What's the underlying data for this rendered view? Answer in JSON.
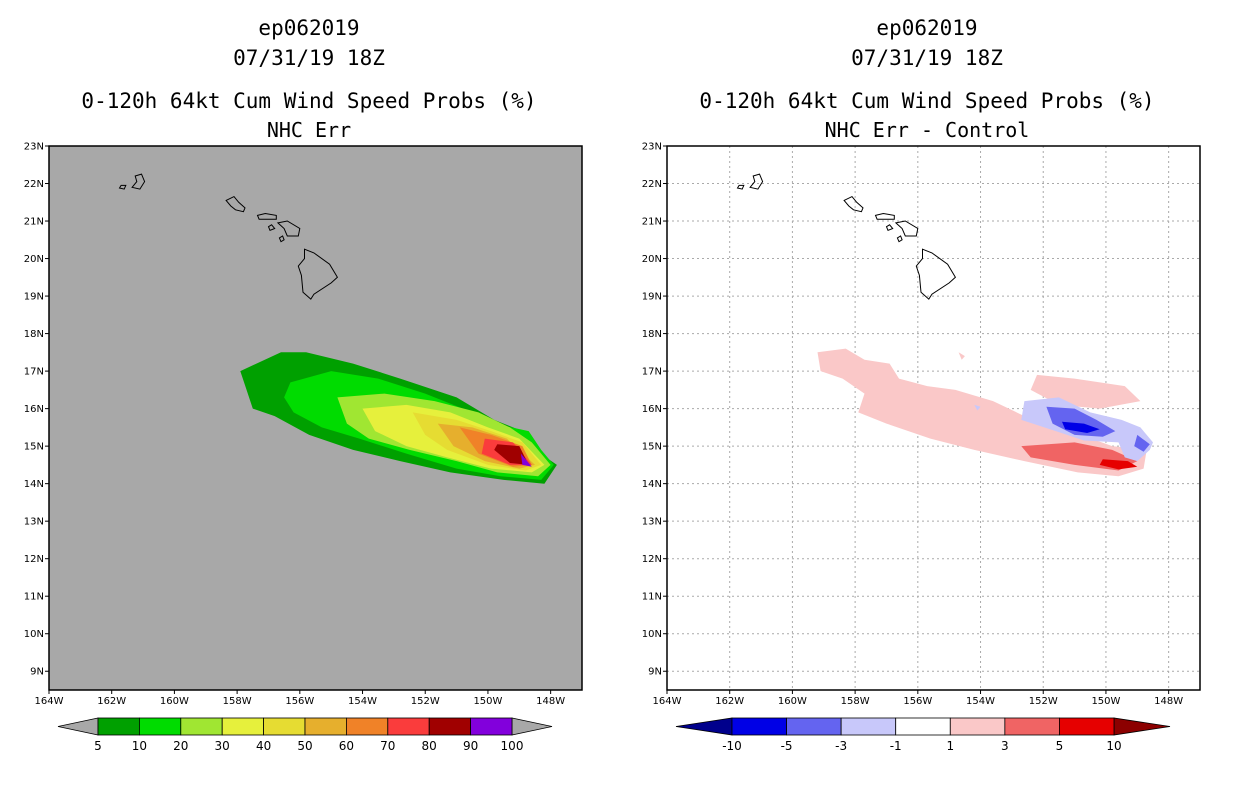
{
  "chart_data": [
    {
      "type": "heatmap",
      "storm_id": "ep062019",
      "datetime": "07/31/19 18Z",
      "title": "0-120h 64kt Cum Wind Speed Probs (%)",
      "subtitle": "NHC Err",
      "xlabel": "",
      "ylabel": "",
      "xlim": [
        -164,
        -147
      ],
      "ylim": [
        8.5,
        23
      ],
      "x_ticks": [
        "164W",
        "162W",
        "160W",
        "158W",
        "156W",
        "154W",
        "152W",
        "150W",
        "148W"
      ],
      "y_ticks": [
        "23N",
        "22N",
        "21N",
        "20N",
        "19N",
        "18N",
        "17N",
        "16N",
        "15N",
        "14N",
        "13N",
        "12N",
        "11N",
        "10N",
        "9N"
      ],
      "grid": false,
      "background": "#a8a8a8",
      "colorbar": {
        "labels": [
          "5",
          "10",
          "20",
          "30",
          "40",
          "50",
          "60",
          "70",
          "80",
          "90",
          "100"
        ],
        "colors": [
          "#00a000",
          "#00dc00",
          "#a0e632",
          "#e6f03c",
          "#e6dc32",
          "#e6af2d",
          "#f08228",
          "#fa3c3c",
          "#a00000",
          "#8200dc"
        ],
        "end_colors": [
          "#a8a8a8",
          "#a8a8a8"
        ]
      },
      "contours": [
        {
          "level": 5,
          "color": "#00a000",
          "points": [
            [
              -157.9,
              17.0
            ],
            [
              -156.6,
              17.5
            ],
            [
              -155.8,
              17.5
            ],
            [
              -154.3,
              17.2
            ],
            [
              -152.8,
              16.8
            ],
            [
              -151.0,
              16.3
            ],
            [
              -149.8,
              15.7
            ],
            [
              -148.9,
              15.4
            ],
            [
              -148.5,
              14.9
            ],
            [
              -147.8,
              14.5
            ],
            [
              -148.2,
              14.0
            ],
            [
              -149.5,
              14.1
            ],
            [
              -151.2,
              14.3
            ],
            [
              -152.8,
              14.6
            ],
            [
              -154.3,
              14.9
            ],
            [
              -155.7,
              15.3
            ],
            [
              -156.8,
              15.8
            ],
            [
              -157.5,
              16.0
            ]
          ]
        },
        {
          "level": 10,
          "color": "#00dc00",
          "points": [
            [
              -156.3,
              16.7
            ],
            [
              -155.0,
              17.0
            ],
            [
              -153.5,
              16.8
            ],
            [
              -152.0,
              16.4
            ],
            [
              -150.8,
              16.0
            ],
            [
              -149.8,
              15.6
            ],
            [
              -148.7,
              15.4
            ],
            [
              -148.3,
              14.9
            ],
            [
              -147.9,
              14.5
            ],
            [
              -148.3,
              14.1
            ],
            [
              -149.6,
              14.2
            ],
            [
              -151.0,
              14.4
            ],
            [
              -152.6,
              14.8
            ],
            [
              -154.1,
              15.2
            ],
            [
              -155.3,
              15.5
            ],
            [
              -156.2,
              15.9
            ],
            [
              -156.5,
              16.3
            ]
          ]
        },
        {
          "level": 20,
          "color": "#a0e632",
          "points": [
            [
              -154.8,
              16.3
            ],
            [
              -153.3,
              16.4
            ],
            [
              -151.7,
              16.2
            ],
            [
              -150.3,
              15.9
            ],
            [
              -149.3,
              15.5
            ],
            [
              -148.6,
              15.1
            ],
            [
              -148.0,
              14.5
            ],
            [
              -148.4,
              14.2
            ],
            [
              -149.7,
              14.3
            ],
            [
              -151.0,
              14.6
            ],
            [
              -152.5,
              14.9
            ],
            [
              -153.8,
              15.2
            ],
            [
              -154.5,
              15.6
            ]
          ]
        },
        {
          "level": 30,
          "color": "#e6f03c",
          "points": [
            [
              -154.0,
              16.0
            ],
            [
              -152.6,
              16.1
            ],
            [
              -151.2,
              15.9
            ],
            [
              -150.0,
              15.5
            ],
            [
              -149.0,
              15.2
            ],
            [
              -148.2,
              14.5
            ],
            [
              -148.6,
              14.3
            ],
            [
              -149.9,
              14.4
            ],
            [
              -151.3,
              14.7
            ],
            [
              -152.6,
              15.0
            ],
            [
              -153.6,
              15.4
            ]
          ]
        },
        {
          "level": 40,
          "color": "#e6dc32",
          "points": [
            [
              -152.4,
              15.9
            ],
            [
              -151.0,
              15.7
            ],
            [
              -149.9,
              15.4
            ],
            [
              -148.9,
              15.1
            ],
            [
              -148.3,
              14.5
            ],
            [
              -148.8,
              14.35
            ],
            [
              -150.0,
              14.5
            ],
            [
              -151.3,
              14.9
            ],
            [
              -152.0,
              15.3
            ]
          ]
        },
        {
          "level": 50,
          "color": "#e6af2d",
          "points": [
            [
              -151.6,
              15.6
            ],
            [
              -150.5,
              15.5
            ],
            [
              -149.4,
              15.2
            ],
            [
              -148.5,
              14.5
            ],
            [
              -149.0,
              14.4
            ],
            [
              -150.1,
              14.6
            ],
            [
              -151.1,
              15.0
            ]
          ]
        },
        {
          "level": 60,
          "color": "#f08228",
          "points": [
            [
              -150.9,
              15.5
            ],
            [
              -149.9,
              15.3
            ],
            [
              -148.9,
              15.0
            ],
            [
              -148.6,
              14.5
            ],
            [
              -149.2,
              14.45
            ],
            [
              -150.3,
              14.8
            ]
          ]
        },
        {
          "level": 70,
          "color": "#fa3c3c",
          "points": [
            [
              -150.1,
              15.2
            ],
            [
              -149.2,
              15.1
            ],
            [
              -148.6,
              14.5
            ],
            [
              -149.3,
              14.5
            ],
            [
              -150.2,
              14.8
            ]
          ]
        },
        {
          "level": 80,
          "color": "#a00000",
          "points": [
            [
              -149.7,
              15.05
            ],
            [
              -149.0,
              15.0
            ],
            [
              -148.7,
              14.5
            ],
            [
              -149.3,
              14.55
            ],
            [
              -149.8,
              14.9
            ]
          ]
        },
        {
          "level": 90,
          "color": "#8200dc",
          "points": [
            [
              -148.95,
              14.8
            ],
            [
              -148.75,
              14.6
            ],
            [
              -148.6,
              14.45
            ],
            [
              -148.9,
              14.5
            ]
          ]
        }
      ]
    },
    {
      "type": "heatmap",
      "storm_id": "ep062019",
      "datetime": "07/31/19 18Z",
      "title": "0-120h 64kt Cum Wind Speed Probs (%)",
      "subtitle": "NHC Err - Control",
      "xlabel": "",
      "ylabel": "",
      "xlim": [
        -164,
        -147
      ],
      "ylim": [
        8.5,
        23
      ],
      "x_ticks": [
        "164W",
        "162W",
        "160W",
        "158W",
        "156W",
        "154W",
        "152W",
        "150W",
        "148W"
      ],
      "y_ticks": [
        "23N",
        "22N",
        "21N",
        "20N",
        "19N",
        "18N",
        "17N",
        "16N",
        "15N",
        "14N",
        "13N",
        "12N",
        "11N",
        "10N",
        "9N"
      ],
      "grid": true,
      "background": "#ffffff",
      "colorbar": {
        "labels": [
          "-10",
          "-5",
          "-3",
          "-1",
          "1",
          "3",
          "5",
          "10"
        ],
        "colors": [
          "#0000e6",
          "#6464f0",
          "#c8c8fa",
          "#ffffff",
          "#fac8c8",
          "#f06464",
          "#e60000"
        ],
        "end_colors": [
          "#00008c",
          "#8c0000"
        ]
      },
      "contours": [
        {
          "level": 1,
          "color": "#fac8c8",
          "points": [
            [
              -159.2,
              17.5
            ],
            [
              -158.3,
              17.6
            ],
            [
              -157.7,
              17.3
            ],
            [
              -156.9,
              17.2
            ],
            [
              -156.6,
              16.8
            ],
            [
              -155.7,
              16.6
            ],
            [
              -154.8,
              16.5
            ],
            [
              -153.6,
              16.2
            ],
            [
              -152.6,
              15.8
            ],
            [
              -151.5,
              15.4
            ],
            [
              -150.8,
              15.3
            ],
            [
              -149.8,
              15.0
            ],
            [
              -148.7,
              14.9
            ],
            [
              -148.8,
              14.4
            ],
            [
              -149.6,
              14.2
            ],
            [
              -150.9,
              14.3
            ],
            [
              -152.6,
              14.6
            ],
            [
              -154.2,
              14.9
            ],
            [
              -155.6,
              15.2
            ],
            [
              -157.0,
              15.6
            ],
            [
              -157.9,
              15.9
            ],
            [
              -157.7,
              16.4
            ],
            [
              -158.4,
              16.8
            ],
            [
              -159.1,
              17.0
            ]
          ]
        },
        {
          "level": 1,
          "color": "#fac8c8",
          "points": [
            [
              -154.7,
              17.5
            ],
            [
              -154.5,
              17.4
            ],
            [
              -154.6,
              17.3
            ]
          ]
        },
        {
          "level": 1,
          "color": "#fac8c8",
          "points": [
            [
              -152.2,
              16.9
            ],
            [
              -151.0,
              16.8
            ],
            [
              -149.4,
              16.6
            ],
            [
              -148.9,
              16.2
            ],
            [
              -150.2,
              16.0
            ],
            [
              -151.5,
              16.1
            ],
            [
              -152.4,
              16.5
            ]
          ]
        },
        {
          "level": 3,
          "color": "#f06464",
          "points": [
            [
              -152.7,
              15.0
            ],
            [
              -151.0,
              15.1
            ],
            [
              -149.8,
              14.9
            ],
            [
              -149.0,
              14.6
            ],
            [
              -149.6,
              14.35
            ],
            [
              -151.0,
              14.5
            ],
            [
              -152.4,
              14.7
            ]
          ]
        },
        {
          "level": 5,
          "color": "#e60000",
          "points": [
            [
              -150.1,
              14.65
            ],
            [
              -149.3,
              14.6
            ],
            [
              -149.0,
              14.45
            ],
            [
              -149.6,
              14.38
            ],
            [
              -150.2,
              14.5
            ]
          ]
        },
        {
          "level": -1,
          "color": "#c8c8fa",
          "points": [
            [
              -152.6,
              16.2
            ],
            [
              -151.5,
              16.3
            ],
            [
              -150.5,
              15.9
            ],
            [
              -149.5,
              15.7
            ],
            [
              -148.9,
              15.5
            ],
            [
              -148.5,
              15.1
            ],
            [
              -148.6,
              14.9
            ],
            [
              -149.0,
              14.6
            ],
            [
              -149.4,
              14.7
            ],
            [
              -149.6,
              15.1
            ],
            [
              -150.7,
              15.15
            ],
            [
              -151.6,
              15.4
            ],
            [
              -152.7,
              15.7
            ]
          ]
        },
        {
          "level": -1,
          "color": "#c8c8fa",
          "points": [
            [
              -154.2,
              16.1
            ],
            [
              -154.0,
              16.05
            ],
            [
              -154.1,
              15.95
            ]
          ]
        },
        {
          "level": -3,
          "color": "#6464f0",
          "points": [
            [
              -151.9,
              16.05
            ],
            [
              -151.0,
              16.0
            ],
            [
              -150.3,
              15.7
            ],
            [
              -149.7,
              15.4
            ],
            [
              -150.1,
              15.25
            ],
            [
              -151.0,
              15.3
            ],
            [
              -151.7,
              15.6
            ]
          ]
        },
        {
          "level": -3,
          "color": "#6464f0",
          "points": [
            [
              -149.0,
              15.3
            ],
            [
              -148.6,
              15.05
            ],
            [
              -148.8,
              14.85
            ],
            [
              -149.1,
              15.0
            ]
          ]
        },
        {
          "level": -5,
          "color": "#0000e6",
          "points": [
            [
              -151.4,
              15.65
            ],
            [
              -150.7,
              15.6
            ],
            [
              -150.2,
              15.45
            ],
            [
              -150.6,
              15.35
            ],
            [
              -151.3,
              15.45
            ]
          ]
        }
      ]
    }
  ]
}
